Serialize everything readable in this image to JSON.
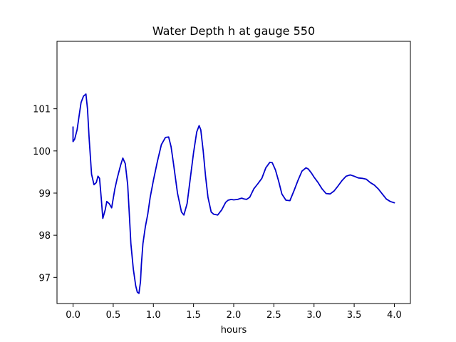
{
  "chart_data": {
    "type": "line",
    "title": "Water Depth h at gauge 550",
    "xlabel": "hours",
    "ylabel": "",
    "xlim": [
      -0.2,
      4.2
    ],
    "ylim": [
      96.38,
      102.6
    ],
    "grid": false,
    "xticks": [
      {
        "value": 0.0,
        "label": "0.0"
      },
      {
        "value": 0.5,
        "label": "0.5"
      },
      {
        "value": 1.0,
        "label": "1.0"
      },
      {
        "value": 1.5,
        "label": "1.5"
      },
      {
        "value": 2.0,
        "label": "2.0"
      },
      {
        "value": 2.5,
        "label": "2.5"
      },
      {
        "value": 3.0,
        "label": "3.0"
      },
      {
        "value": 3.5,
        "label": "3.5"
      },
      {
        "value": 4.0,
        "label": "4.0"
      }
    ],
    "yticks": [
      {
        "value": 97,
        "label": "97"
      },
      {
        "value": 98,
        "label": "98"
      },
      {
        "value": 99,
        "label": "99"
      },
      {
        "value": 100,
        "label": "100"
      },
      {
        "value": 101,
        "label": "101"
      }
    ],
    "series": [
      {
        "color": "#0000cc",
        "x": [
          0.0,
          0.0,
          0.02,
          0.05,
          0.08,
          0.1,
          0.13,
          0.16,
          0.18,
          0.2,
          0.23,
          0.26,
          0.29,
          0.31,
          0.33,
          0.35,
          0.37,
          0.4,
          0.42,
          0.45,
          0.48,
          0.52,
          0.55,
          0.59,
          0.62,
          0.65,
          0.68,
          0.7,
          0.72,
          0.75,
          0.78,
          0.8,
          0.82,
          0.84,
          0.85,
          0.87,
          0.9,
          0.93,
          0.96,
          1.0,
          1.05,
          1.1,
          1.15,
          1.19,
          1.22,
          1.25,
          1.3,
          1.35,
          1.38,
          1.42,
          1.46,
          1.5,
          1.54,
          1.57,
          1.59,
          1.62,
          1.65,
          1.68,
          1.72,
          1.75,
          1.8,
          1.85,
          1.9,
          1.93,
          1.97,
          2.0,
          2.05,
          2.08,
          2.1,
          2.13,
          2.16,
          2.2,
          2.25,
          2.3,
          2.35,
          2.4,
          2.45,
          2.48,
          2.52,
          2.56,
          2.6,
          2.65,
          2.7,
          2.75,
          2.8,
          2.85,
          2.9,
          2.93,
          2.97,
          3.0,
          3.05,
          3.1,
          3.15,
          3.2,
          3.25,
          3.3,
          3.35,
          3.4,
          3.45,
          3.5,
          3.55,
          3.6,
          3.65,
          3.7,
          3.75,
          3.8,
          3.85,
          3.9,
          3.95,
          4.0
        ],
        "y": [
          100.57,
          100.22,
          100.28,
          100.5,
          100.9,
          101.15,
          101.3,
          101.35,
          101.0,
          100.3,
          99.45,
          99.2,
          99.25,
          99.4,
          99.35,
          98.9,
          98.4,
          98.6,
          98.8,
          98.75,
          98.65,
          99.1,
          99.35,
          99.65,
          99.83,
          99.7,
          99.2,
          98.5,
          97.8,
          97.2,
          96.8,
          96.65,
          96.62,
          96.9,
          97.3,
          97.8,
          98.2,
          98.5,
          98.9,
          99.3,
          99.75,
          100.15,
          100.32,
          100.33,
          100.1,
          99.7,
          99.0,
          98.55,
          98.48,
          98.75,
          99.35,
          99.95,
          100.45,
          100.6,
          100.5,
          100.0,
          99.4,
          98.9,
          98.55,
          98.5,
          98.48,
          98.6,
          98.78,
          98.83,
          98.85,
          98.84,
          98.85,
          98.87,
          98.88,
          98.86,
          98.85,
          98.9,
          99.1,
          99.22,
          99.35,
          99.6,
          99.73,
          99.72,
          99.55,
          99.28,
          98.98,
          98.83,
          98.82,
          99.05,
          99.3,
          99.52,
          99.6,
          99.57,
          99.47,
          99.38,
          99.25,
          99.1,
          98.99,
          98.98,
          99.05,
          99.17,
          99.3,
          99.4,
          99.43,
          99.4,
          99.36,
          99.35,
          99.33,
          99.25,
          99.19,
          99.1,
          98.98,
          98.86,
          98.8,
          98.77
        ]
      }
    ]
  }
}
